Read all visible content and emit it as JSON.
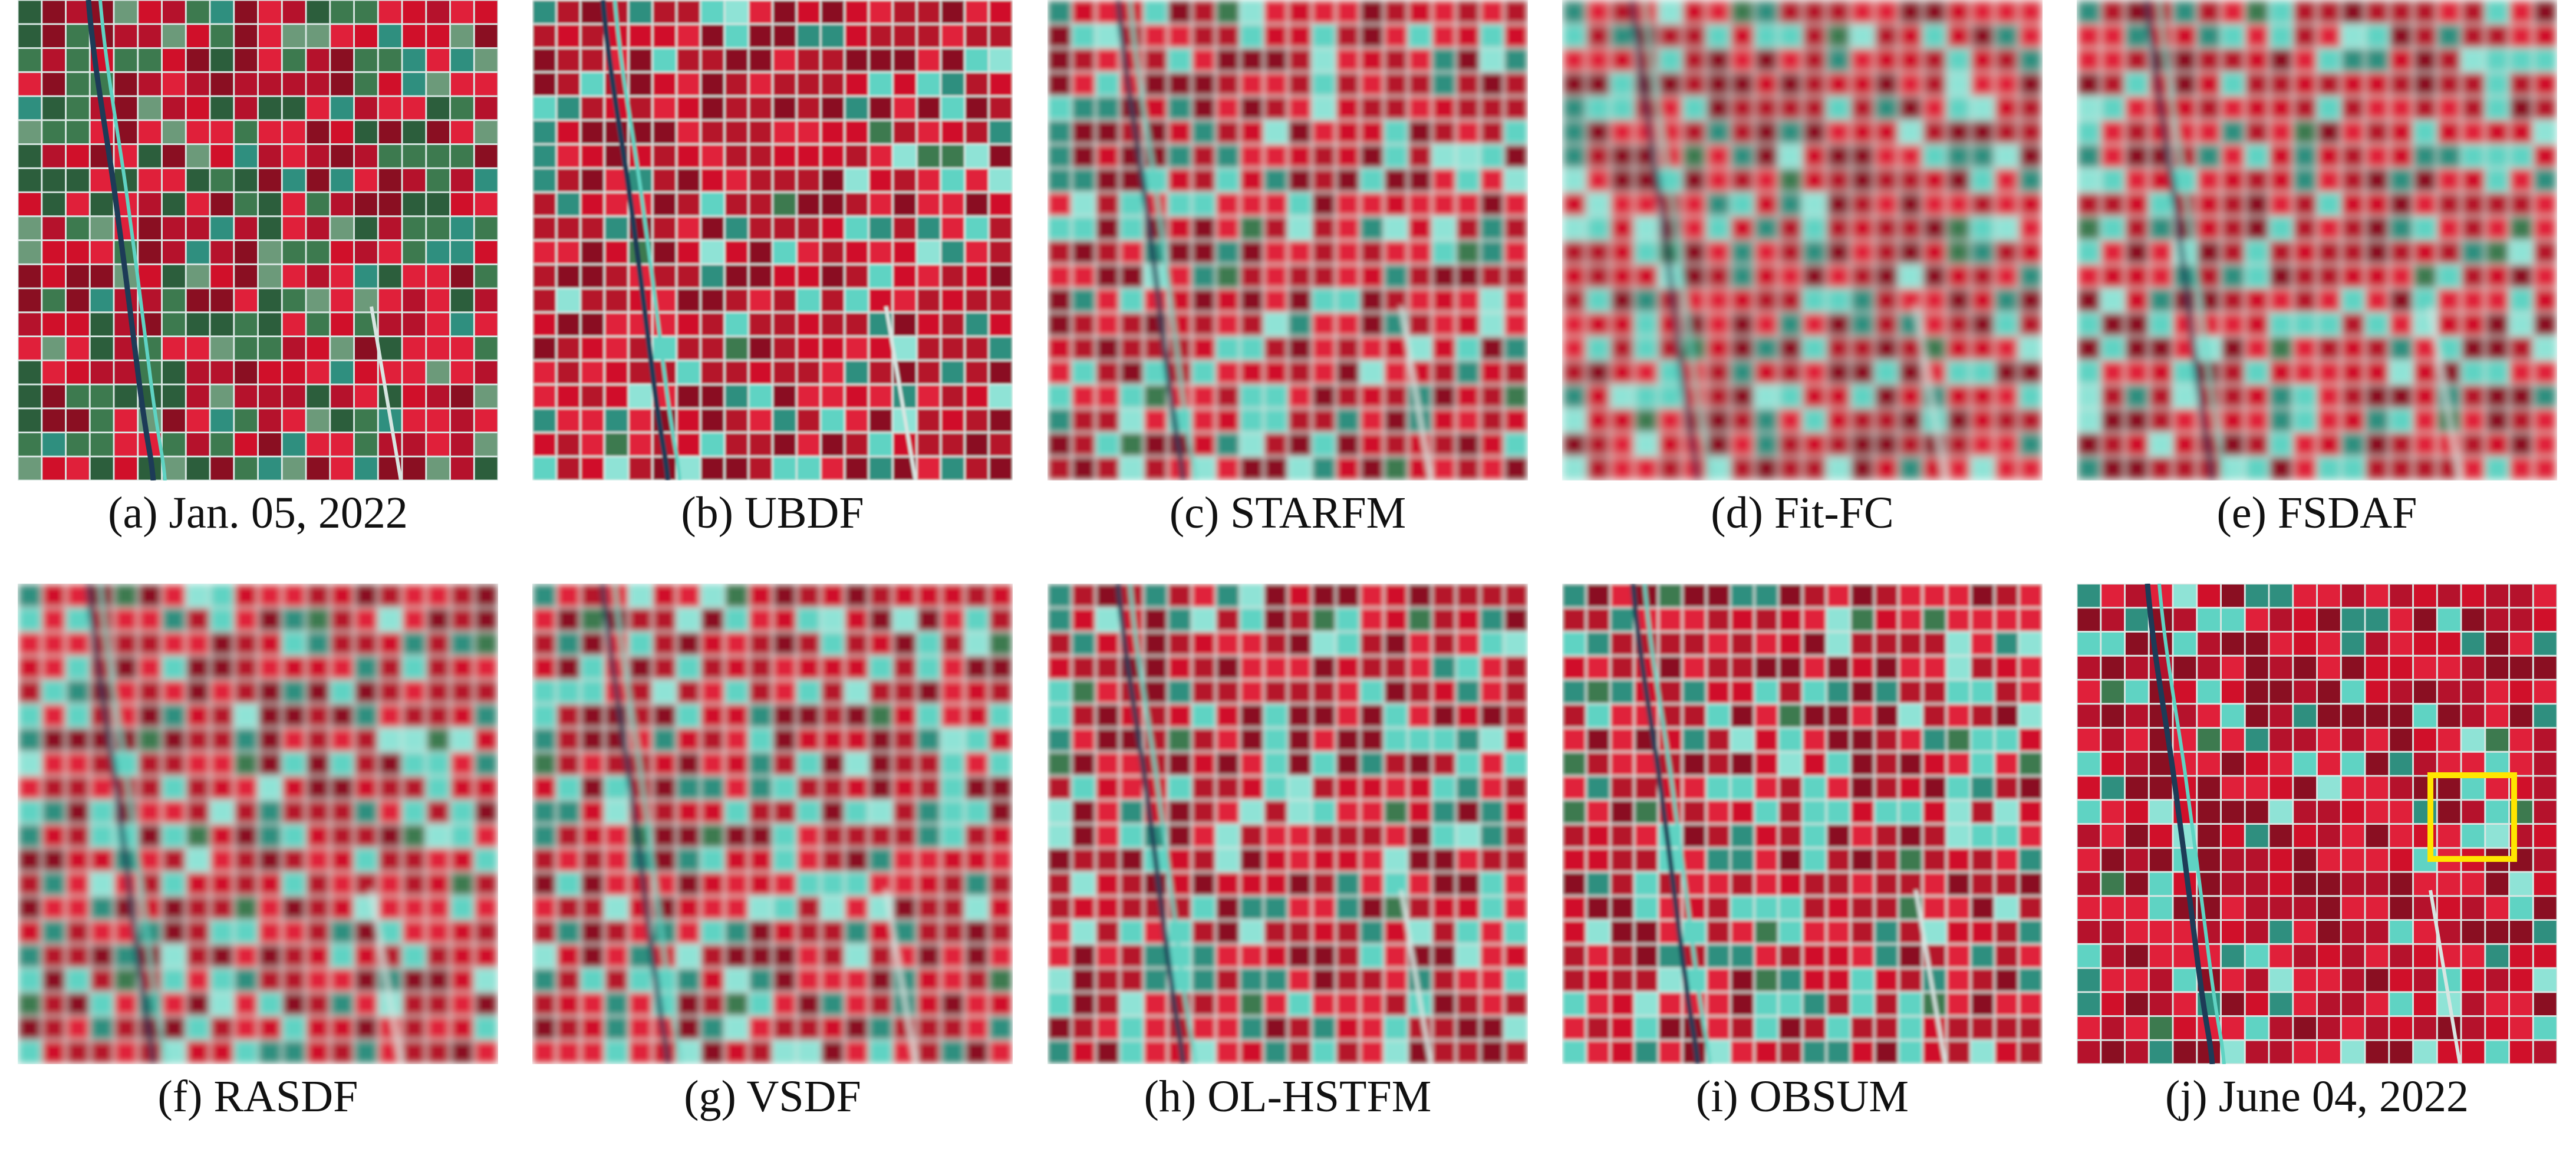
{
  "figure": {
    "panels": [
      {
        "caption": "(a) Jan. 05, 2022",
        "kind": "observed",
        "green_ratio": 0.45,
        "blur": 0.0
      },
      {
        "caption": "(b) UBDF",
        "kind": "fused",
        "green_ratio": 0.3,
        "blur": 0.6
      },
      {
        "caption": "(c) STARFM",
        "kind": "fused",
        "green_ratio": 0.35,
        "blur": 1.6
      },
      {
        "caption": "(d) Fit-FC",
        "kind": "fused",
        "green_ratio": 0.35,
        "blur": 2.4
      },
      {
        "caption": "(e) FSDAF",
        "kind": "fused",
        "green_ratio": 0.35,
        "blur": 2.2
      },
      {
        "caption": "(f) RASDF",
        "kind": "fused",
        "green_ratio": 0.35,
        "blur": 2.0
      },
      {
        "caption": "(g) VSDF",
        "kind": "fused",
        "green_ratio": 0.35,
        "blur": 1.8
      },
      {
        "caption": "(h) OL-HSTFM",
        "kind": "fused",
        "green_ratio": 0.35,
        "blur": 1.2
      },
      {
        "caption": "(i) OBSUM",
        "kind": "fused",
        "green_ratio": 0.35,
        "blur": 1.0
      },
      {
        "caption": "(j) June 04, 2022",
        "kind": "reference",
        "green_ratio": 0.3,
        "blur": 0.0,
        "highlight_color": "#ffe600"
      }
    ],
    "colors": {
      "crop_red": "#d0102a",
      "crop_dark_red": "#8a0f22",
      "soil_cyan": "#5fd3c3",
      "soil_teal": "#2f8f7f",
      "field_green": "#3d7a4f",
      "road_white": "#d8e6e2",
      "river_dark": "#1d3b57"
    }
  }
}
